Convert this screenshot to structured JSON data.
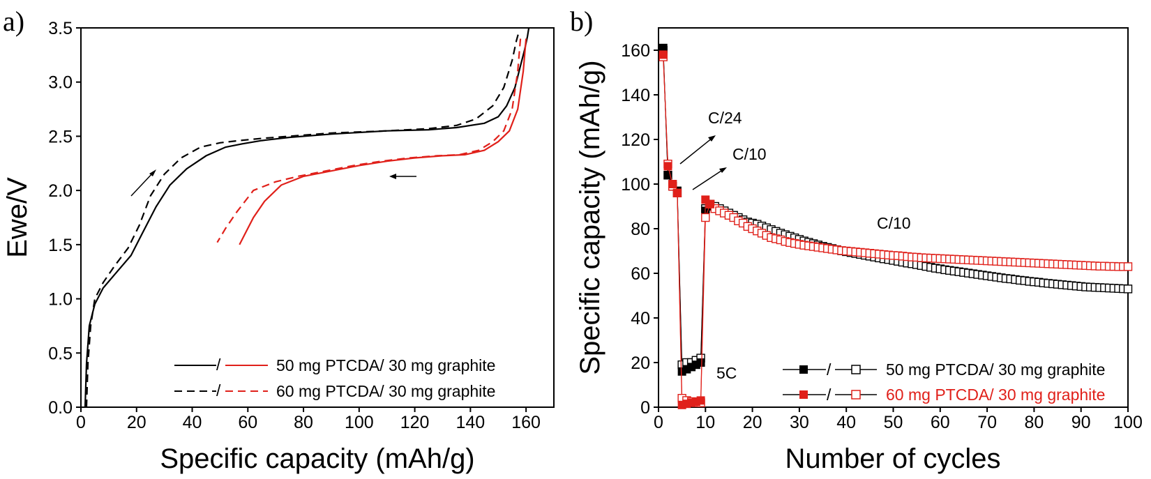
{
  "chart_data": [
    {
      "type": "line",
      "panel_label": "a)",
      "xlabel": "Specific capacity (mAh/g)",
      "ylabel": "Ewe/V",
      "xlim": [
        0,
        170
      ],
      "ylim": [
        0,
        3.5
      ],
      "x_ticks": [
        "0",
        "20",
        "40",
        "60",
        "80",
        "100",
        "120",
        "140",
        "160"
      ],
      "y_ticks": [
        "0.0",
        "0.5",
        "1.0",
        "1.5",
        "2.0",
        "2.5",
        "3.0",
        "3.5"
      ],
      "legend": {
        "placement": "bottom-right",
        "entries": [
          "50 mg PTCDA/ 30 mg graphite",
          "60 mg PTCDA/ 30 mg graphite"
        ],
        "separator": "/"
      },
      "series": [
        {
          "name": "50 mg PTCDA/ 30 mg graphite",
          "branch": "charge",
          "color": "#000000",
          "dash": "solid",
          "x": [
            1.5,
            2,
            3,
            5,
            8,
            13,
            18,
            22,
            27,
            32,
            38,
            45,
            52,
            58,
            65,
            75,
            90,
            110,
            125,
            135,
            145,
            150,
            153,
            156,
            158,
            159.5,
            160.5,
            161
          ],
          "y": [
            0.0,
            0.4,
            0.75,
            0.95,
            1.1,
            1.25,
            1.4,
            1.6,
            1.85,
            2.05,
            2.2,
            2.32,
            2.4,
            2.43,
            2.46,
            2.49,
            2.52,
            2.55,
            2.56,
            2.58,
            2.62,
            2.68,
            2.78,
            2.95,
            3.15,
            3.3,
            3.42,
            3.5
          ]
        },
        {
          "name": "50 mg PTCDA/ 30 mg graphite",
          "branch": "discharge",
          "color": "#e0201a",
          "dash": "solid",
          "x": [
            160,
            159,
            157,
            154,
            150,
            145,
            138,
            130,
            120,
            110,
            100,
            90,
            80,
            72,
            66,
            62,
            59,
            57
          ],
          "y": [
            3.4,
            3.1,
            2.75,
            2.55,
            2.45,
            2.37,
            2.33,
            2.32,
            2.3,
            2.27,
            2.23,
            2.18,
            2.13,
            2.05,
            1.9,
            1.75,
            1.6,
            1.5
          ]
        },
        {
          "name": "60 mg PTCDA/ 30 mg graphite",
          "branch": "charge",
          "color": "#000000",
          "dash": "dashed",
          "x": [
            2,
            2.5,
            3.5,
            5,
            8,
            12,
            17,
            21,
            25,
            30,
            36,
            43,
            50,
            57,
            65,
            75,
            90,
            110,
            125,
            135,
            142,
            148,
            152,
            155,
            156.5,
            157.5
          ],
          "y": [
            0.0,
            0.4,
            0.75,
            1.0,
            1.15,
            1.3,
            1.47,
            1.68,
            1.95,
            2.15,
            2.3,
            2.4,
            2.44,
            2.46,
            2.48,
            2.5,
            2.53,
            2.55,
            2.57,
            2.6,
            2.66,
            2.78,
            2.95,
            3.2,
            3.38,
            3.47
          ]
        },
        {
          "name": "60 mg PTCDA/ 30 mg graphite",
          "branch": "discharge",
          "color": "#e0201a",
          "dash": "dashed",
          "x": [
            158,
            157,
            155,
            152,
            148,
            143,
            136,
            128,
            118,
            108,
            98,
            88,
            78,
            70,
            62,
            56,
            52,
            49
          ],
          "y": [
            3.4,
            3.1,
            2.75,
            2.55,
            2.45,
            2.37,
            2.33,
            2.32,
            2.3,
            2.27,
            2.23,
            2.18,
            2.13,
            2.08,
            2.0,
            1.8,
            1.65,
            1.52
          ]
        }
      ]
    },
    {
      "type": "scatter",
      "panel_label": "b)",
      "xlabel": "Number of cycles",
      "ylabel": "Specific capacity (mAh/g)",
      "xlim": [
        0,
        100
      ],
      "ylim": [
        0,
        170
      ],
      "x_ticks": [
        "0",
        "10",
        "20",
        "30",
        "40",
        "50",
        "60",
        "70",
        "80",
        "90",
        "100"
      ],
      "y_ticks": [
        "0",
        "20",
        "40",
        "60",
        "80",
        "100",
        "120",
        "140",
        "160"
      ],
      "annotations": [
        "C/24",
        "C/10",
        "C/10",
        "5C"
      ],
      "legend": {
        "placement": "bottom-right",
        "entries": [
          "50 mg PTCDA/ 30 mg graphite",
          "60 mg PTCDA/ 30 mg graphite"
        ],
        "separator": "/"
      },
      "series": [
        {
          "name": "50 mg PTCDA/ 30 mg graphite",
          "color": "#000000",
          "charge": [
            161,
            104,
            100,
            97,
            16,
            17,
            18,
            19,
            20,
            88,
            90,
            89,
            88,
            87,
            86,
            85,
            84,
            83.5,
            83,
            82.5,
            82,
            81.2,
            80.4,
            79.6,
            78.8,
            78,
            77.3,
            76.6,
            75.9,
            75.2,
            74.5,
            73.9,
            73.3,
            72.7,
            72.1,
            71.6,
            71.1,
            70.6,
            70.1,
            69.7,
            69.3,
            68.9,
            68.5,
            68.1,
            67.7,
            67.3,
            66.9,
            66.5,
            66.2,
            65.8,
            65.4,
            65,
            64.6,
            64.3,
            63.9,
            63.5,
            63.1,
            62.7,
            62.3,
            62,
            61.6,
            61.3,
            61,
            60.7,
            60.4,
            60.1,
            59.8,
            59.5,
            59.2,
            58.9,
            58.6,
            58.3,
            58,
            57.7,
            57.5,
            57.2,
            56.9,
            56.7,
            56.4,
            56.2,
            56,
            55.7,
            55.5,
            55.3,
            55.1,
            54.9,
            54.7,
            54.5,
            54.3,
            54.1,
            53.9,
            53.8,
            53.7,
            53.6,
            53.5,
            53.4,
            53.3,
            53.2,
            53.1,
            53
          ],
          "discharge": [
            160,
            104,
            99,
            96,
            19,
            20,
            20,
            21,
            22,
            89,
            91,
            90,
            89,
            88,
            87,
            86,
            85,
            84,
            83,
            82.5,
            82,
            81.2,
            80.4,
            79.6,
            78.8,
            78,
            77.3,
            76.6,
            75.9,
            75.2,
            74.5,
            73.9,
            73.3,
            72.7,
            72.1,
            71.6,
            71.1,
            70.6,
            70.1,
            69.7,
            69.3,
            68.9,
            68.5,
            68.1,
            67.7,
            67.3,
            66.9,
            66.5,
            66.2,
            65.8,
            65.4,
            65,
            64.6,
            64.3,
            63.9,
            63.5,
            63.1,
            62.7,
            62.3,
            62,
            61.6,
            61.3,
            61,
            60.7,
            60.4,
            60.1,
            59.8,
            59.5,
            59.2,
            58.9,
            58.6,
            58.3,
            58,
            57.7,
            57.5,
            57.2,
            56.9,
            56.7,
            56.4,
            56.2,
            56,
            55.7,
            55.5,
            55.3,
            55.1,
            54.9,
            54.7,
            54.5,
            54.3,
            54.1,
            53.9,
            53.8,
            53.7,
            53.6,
            53.5,
            53.4,
            53.3,
            53.2,
            53.1,
            53
          ]
        },
        {
          "name": "60 mg PTCDA/ 30 mg graphite",
          "color": "#e0201a",
          "charge": [
            158,
            108,
            100,
            96,
            1,
            1.5,
            2,
            2.5,
            3,
            93,
            91,
            90,
            89,
            88,
            86.5,
            85,
            84,
            83,
            82,
            80.5,
            79,
            78,
            77,
            76,
            75.3,
            74.6,
            74,
            73.5,
            73,
            72.7,
            72.4,
            72.1,
            71.8,
            71.5,
            71.2,
            70.9,
            70.6,
            70.3,
            70,
            69.8,
            69.6,
            69.4,
            69.2,
            69,
            68.8,
            68.6,
            68.4,
            68.2,
            68,
            67.8,
            67.7,
            67.5,
            67.3,
            67.1,
            66.9,
            66.8,
            66.7,
            66.6,
            66.5,
            66.4,
            66.3,
            66.2,
            66.1,
            66,
            65.9,
            65.8,
            65.7,
            65.6,
            65.5,
            65.4,
            65.3,
            65.2,
            65.1,
            65,
            64.9,
            64.8,
            64.7,
            64.6,
            64.5,
            64.4,
            64.3,
            64.2,
            64.1,
            64,
            63.9,
            63.8,
            63.7,
            63.6,
            63.5,
            63.4,
            63.3,
            63.3,
            63.2,
            63.2,
            63.1,
            63.1,
            63,
            63,
            63,
            63
          ],
          "discharge": [
            157,
            109,
            99,
            96,
            4,
            3,
            2.5,
            2,
            2,
            85,
            91,
            89,
            88,
            87,
            86,
            85,
            83.5,
            82.5,
            81,
            80,
            79,
            78,
            77,
            76,
            75.5,
            75,
            74.3,
            73.8,
            73.4,
            73,
            72.6,
            72.3,
            72,
            71.7,
            71.4,
            71.1,
            70.8,
            70.5,
            70.2,
            70,
            69.8,
            69.6,
            69.4,
            69.2,
            69,
            68.8,
            68.6,
            68.4,
            68.2,
            68,
            67.9,
            67.7,
            67.5,
            67.3,
            67.2,
            67,
            66.9,
            66.8,
            66.7,
            66.6,
            66.5,
            66.4,
            66.3,
            66.2,
            66.1,
            66,
            65.9,
            65.8,
            65.7,
            65.6,
            65.5,
            65.4,
            65.3,
            65.2,
            65.1,
            65,
            64.9,
            64.8,
            64.7,
            64.6,
            64.5,
            64.4,
            64.3,
            64.2,
            64.1,
            64,
            63.9,
            63.8,
            63.7,
            63.6,
            63.5,
            63.4,
            63.3,
            63.2,
            63.2,
            63.1,
            63.1,
            63,
            63,
            63
          ]
        }
      ]
    }
  ]
}
